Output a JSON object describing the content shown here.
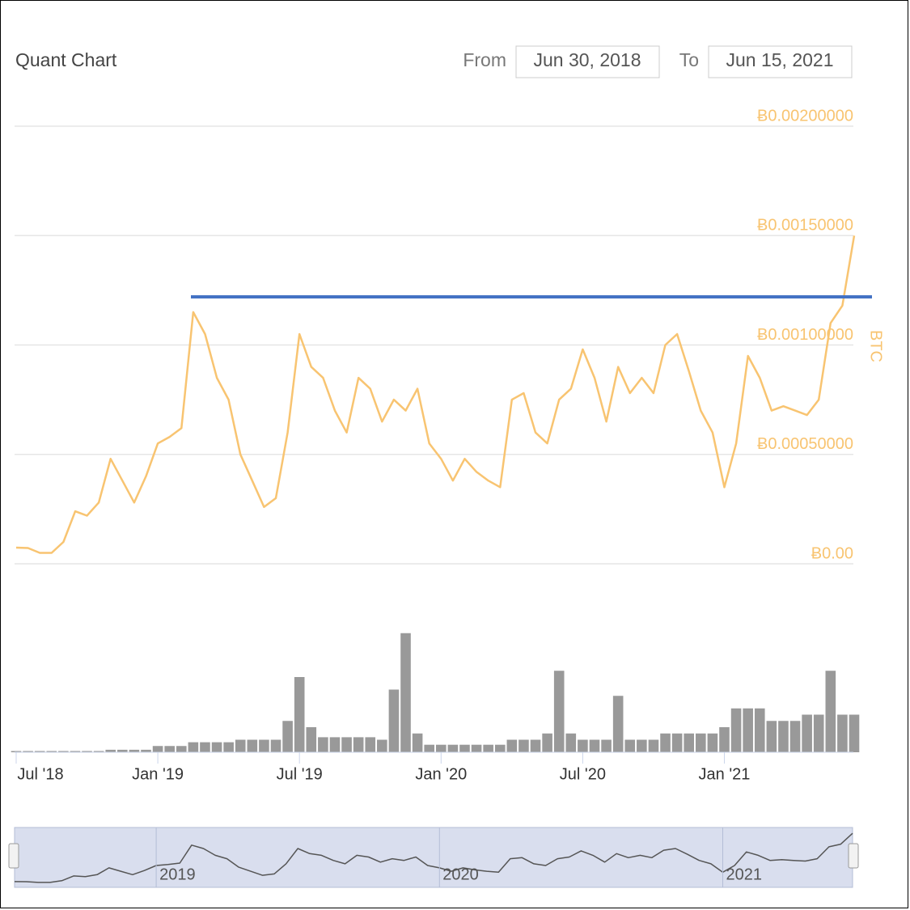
{
  "chart_data": {
    "type": "line",
    "title": "Quant Chart",
    "range": {
      "from_label": "From",
      "from": "Jun 30, 2018",
      "to_label": "To",
      "to": "Jun 15, 2021"
    },
    "y_label": "BTC",
    "categories": [
      "Jul '18",
      null,
      null,
      null,
      null,
      null,
      null,
      null,
      null,
      null,
      null,
      null,
      "Jan '19",
      null,
      null,
      null,
      null,
      null,
      null,
      null,
      null,
      null,
      null,
      null,
      "Jul '19",
      null,
      null,
      null,
      null,
      null,
      null,
      null,
      null,
      null,
      null,
      null,
      "Jan '20",
      null,
      null,
      null,
      null,
      null,
      null,
      null,
      null,
      null,
      null,
      null,
      "Jul '20",
      null,
      null,
      null,
      null,
      null,
      null,
      null,
      null,
      null,
      null,
      null,
      "Jan '21",
      null,
      null,
      null,
      null,
      null,
      null,
      null,
      null,
      null,
      null,
      null
    ],
    "series": [
      {
        "name": "Price",
        "color": "#f8c471",
        "values": [
          7.4e-05,
          7.2e-05,
          5e-05,
          5e-05,
          0.0001,
          0.00024,
          0.00022,
          0.00028,
          0.00048,
          0.00038,
          0.00028,
          0.0004,
          0.00055,
          0.00058,
          0.00062,
          0.00115,
          0.00105,
          0.00085,
          0.00075,
          0.0005,
          0.00038,
          0.00026,
          0.0003,
          0.0006,
          0.00105,
          0.0009,
          0.00085,
          0.0007,
          0.0006,
          0.00085,
          0.0008,
          0.00065,
          0.00075,
          0.0007,
          0.0008,
          0.00055,
          0.00048,
          0.00038,
          0.00048,
          0.00042,
          0.00038,
          0.00035,
          0.00075,
          0.00078,
          0.0006,
          0.00055,
          0.00075,
          0.0008,
          0.00098,
          0.00085,
          0.00065,
          0.0009,
          0.00078,
          0.00085,
          0.00078,
          0.001,
          0.00105,
          0.00088,
          0.0007,
          0.0006,
          0.00035,
          0.00055,
          0.00095,
          0.00085,
          0.0007,
          0.00072,
          0.0007,
          0.00068,
          0.00075,
          0.0011,
          0.00118,
          0.0015
        ]
      },
      {
        "name": "Volume",
        "color": "#999999",
        "values": [
          1,
          1,
          1,
          1,
          1,
          1,
          1,
          1,
          2,
          2,
          2,
          2,
          5,
          5,
          5,
          8,
          8,
          8,
          8,
          10,
          10,
          10,
          10,
          25,
          60,
          20,
          12,
          12,
          12,
          12,
          12,
          10,
          50,
          95,
          15,
          6,
          6,
          6,
          6,
          6,
          6,
          6,
          10,
          10,
          10,
          15,
          65,
          15,
          10,
          10,
          10,
          45,
          10,
          10,
          10,
          15,
          15,
          15,
          15,
          15,
          20,
          35,
          35,
          35,
          25,
          25,
          25,
          30,
          30,
          65,
          30,
          30
        ]
      }
    ],
    "ylim": [
      0,
      0.002
    ],
    "yticks": [
      {
        "value": 0,
        "label": "Ƀ0.00"
      },
      {
        "value": 0.0005,
        "label": "Ƀ0.00050000"
      },
      {
        "value": 0.001,
        "label": "Ƀ0.00100000"
      },
      {
        "value": 0.0015,
        "label": "Ƀ0.00150000"
      },
      {
        "value": 0.002,
        "label": "Ƀ0.00200000"
      }
    ],
    "volume_ylim": [
      0,
      100
    ],
    "reference_line": {
      "value": 0.00122,
      "color": "#4472c4"
    },
    "navigator": {
      "labels": [
        "2019",
        "2020",
        "2021"
      ]
    },
    "grid": true
  }
}
